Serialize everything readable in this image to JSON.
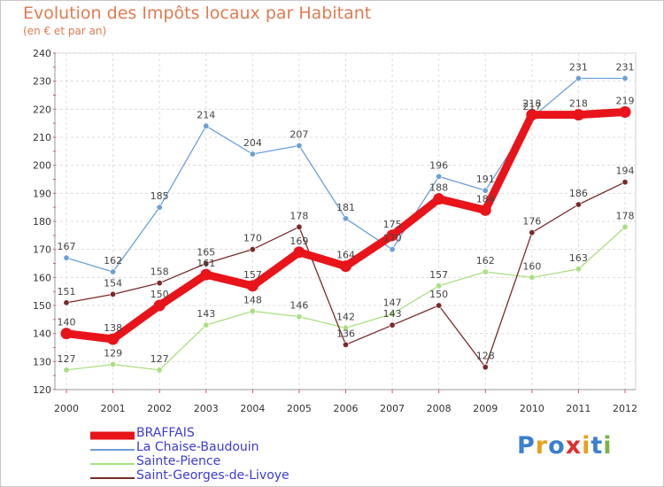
{
  "header": {
    "title": "Evolution des Impôts locaux par Habitant",
    "subtitle": "(en € et par an)"
  },
  "logo": {
    "text": "Proxiti",
    "colors": [
      "#3b7fd0",
      "#e8a020",
      "#3b7fd0",
      "#e03030",
      "#e8a020",
      "#3b7fd0",
      "#7cb342"
    ]
  },
  "chart_data": {
    "type": "line",
    "title": "Evolution des Impôts locaux par Habitant",
    "subtitle": "(en € et par an)",
    "x": [
      "2000",
      "2001",
      "2002",
      "2003",
      "2004",
      "2005",
      "2006",
      "2007",
      "2008",
      "2009",
      "2010",
      "2011",
      "2012"
    ],
    "ylim": [
      120,
      240
    ],
    "yticks": [
      "120",
      "130",
      "140",
      "150",
      "160",
      "170",
      "180",
      "190",
      "200",
      "210",
      "220",
      "230",
      "240"
    ],
    "grid": true,
    "legend_placement": "bottom-left",
    "series": [
      {
        "name": "BRAFFAIS",
        "color": "#e8141a",
        "values": [
          140,
          138,
          150,
          161,
          157,
          169,
          164,
          175,
          188,
          184,
          218,
          218,
          219
        ],
        "labels": [
          "140",
          "138",
          "150",
          "161",
          "157",
          "169",
          "164",
          "175",
          "188",
          "184",
          "218",
          "218",
          "219"
        ]
      },
      {
        "name": "La Chaise-Baudouin",
        "color": "#6aa0d8",
        "values": [
          167,
          162,
          185,
          214,
          204,
          207,
          181,
          170,
          196,
          191,
          217,
          231,
          231
        ],
        "labels": [
          "167",
          "162",
          "185",
          "214",
          "204",
          "207",
          "181",
          "170",
          "196",
          "191",
          "217",
          "231",
          "231"
        ]
      },
      {
        "name": "Sainte-Pience",
        "color": "#a8e080",
        "values": [
          127,
          129,
          127,
          143,
          148,
          146,
          142,
          147,
          157,
          162,
          160,
          163,
          178
        ],
        "labels": [
          "127",
          "129",
          "127",
          "143",
          "148",
          "146",
          "142",
          "147",
          "157",
          "162",
          "160",
          "163",
          "178"
        ]
      },
      {
        "name": "Saint-Georges-de-Livoye",
        "color": "#7a2a2a",
        "values": [
          151,
          154,
          158,
          165,
          170,
          178,
          136,
          143,
          150,
          128,
          176,
          186,
          194
        ],
        "labels": [
          "151",
          "154",
          "158",
          "165",
          "170",
          "178",
          "136",
          "143",
          "150",
          "128",
          "176",
          "186",
          "194"
        ]
      }
    ]
  }
}
